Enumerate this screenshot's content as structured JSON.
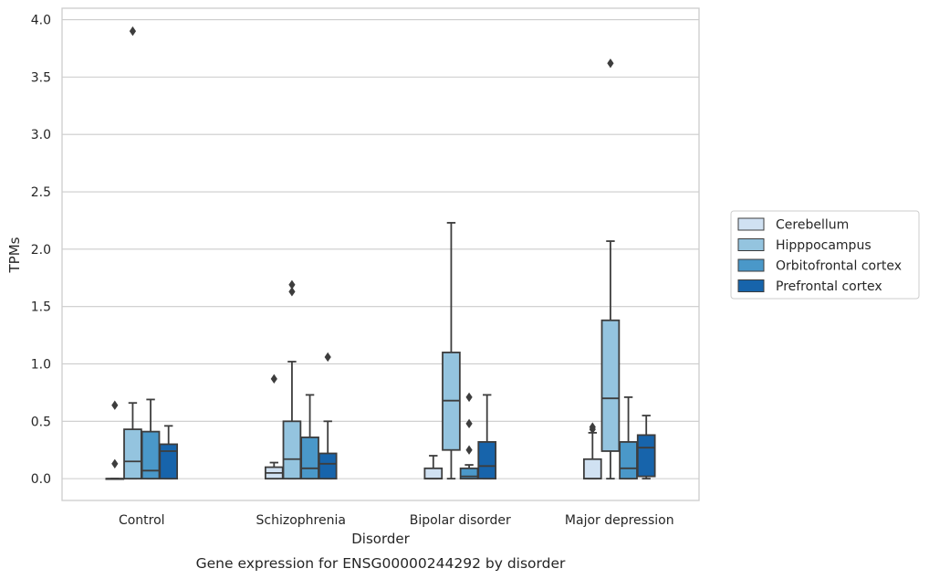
{
  "chart_data": {
    "type": "box",
    "caption": "Gene expression for ENSG00000244292 by disorder",
    "xlabel": "Disorder",
    "ylabel": "TPMs",
    "ylim": [
      -0.19,
      4.1
    ],
    "yticks": [
      "0.0",
      "0.5",
      "1.0",
      "1.5",
      "2.0",
      "2.5",
      "3.0",
      "3.5",
      "4.0"
    ],
    "ytick_values": [
      0,
      0.5,
      1.0,
      1.5,
      2.0,
      2.5,
      3.0,
      3.5,
      4.0
    ],
    "grid": "horizontal",
    "legend_position": "right",
    "categories": [
      "Control",
      "Schizophrenia",
      "Bipolar disorder",
      "Major depression"
    ],
    "series": [
      {
        "name": "Cerebellum",
        "color": "#d0e1f2",
        "boxes": [
          {
            "q1": 0.0,
            "median": 0.0,
            "q3": 0.0,
            "whislo": 0.0,
            "whishi": 0.0,
            "fliers": [
              0.13,
              0.64
            ]
          },
          {
            "q1": 0.0,
            "median": 0.05,
            "q3": 0.1,
            "whislo": 0.0,
            "whishi": 0.14,
            "fliers": [
              0.87
            ]
          },
          {
            "q1": 0.0,
            "median": 0.0,
            "q3": 0.09,
            "whislo": 0.0,
            "whishi": 0.2,
            "fliers": []
          },
          {
            "q1": 0.0,
            "median": 0.0,
            "q3": 0.17,
            "whislo": 0.0,
            "whishi": 0.4,
            "fliers": [
              0.43,
              0.45
            ]
          }
        ]
      },
      {
        "name": "Hipppocampus",
        "color": "#94c4df",
        "boxes": [
          {
            "q1": 0.0,
            "median": 0.15,
            "q3": 0.43,
            "whislo": 0.0,
            "whishi": 0.66,
            "fliers": [
              3.9
            ]
          },
          {
            "q1": 0.0,
            "median": 0.17,
            "q3": 0.5,
            "whislo": 0.0,
            "whishi": 1.02,
            "fliers": [
              1.63,
              1.69
            ]
          },
          {
            "q1": 0.25,
            "median": 0.68,
            "q3": 1.1,
            "whislo": 0.0,
            "whishi": 2.23,
            "fliers": []
          },
          {
            "q1": 0.24,
            "median": 0.7,
            "q3": 1.38,
            "whislo": 0.0,
            "whishi": 2.07,
            "fliers": [
              3.62
            ]
          }
        ]
      },
      {
        "name": "Orbitofrontal cortex",
        "color": "#4a98c9",
        "boxes": [
          {
            "q1": 0.0,
            "median": 0.07,
            "q3": 0.41,
            "whislo": 0.0,
            "whishi": 0.69,
            "fliers": []
          },
          {
            "q1": 0.0,
            "median": 0.09,
            "q3": 0.36,
            "whislo": 0.0,
            "whishi": 0.73,
            "fliers": []
          },
          {
            "q1": 0.0,
            "median": 0.02,
            "q3": 0.09,
            "whislo": 0.0,
            "whishi": 0.12,
            "fliers": [
              0.25,
              0.48,
              0.71
            ]
          },
          {
            "q1": 0.0,
            "median": 0.09,
            "q3": 0.32,
            "whislo": 0.0,
            "whishi": 0.71,
            "fliers": []
          }
        ]
      },
      {
        "name": "Prefrontal cortex",
        "color": "#1764ab",
        "boxes": [
          {
            "q1": 0.0,
            "median": 0.24,
            "q3": 0.3,
            "whislo": 0.0,
            "whishi": 0.46,
            "fliers": []
          },
          {
            "q1": 0.0,
            "median": 0.13,
            "q3": 0.22,
            "whislo": 0.0,
            "whishi": 0.5,
            "fliers": [
              1.06
            ]
          },
          {
            "q1": 0.0,
            "median": 0.11,
            "q3": 0.32,
            "whislo": 0.0,
            "whishi": 0.73,
            "fliers": []
          },
          {
            "q1": 0.02,
            "median": 0.27,
            "q3": 0.38,
            "whislo": 0.0,
            "whishi": 0.55,
            "fliers": []
          }
        ]
      }
    ]
  }
}
